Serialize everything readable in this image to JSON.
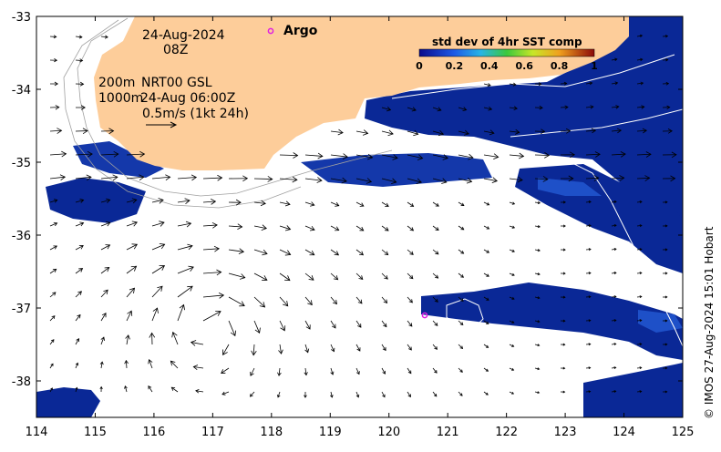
{
  "map": {
    "date": "24-Aug-2024",
    "hour": "08Z",
    "legend_line1_depth": "200m",
    "legend_line1_text": "NRT00 GSL",
    "legend_line2_depth": "1000m",
    "legend_line2_text": "24-Aug 06:00Z",
    "scale_text": "0.5m/s (1kt 24h)",
    "argo_label": "Argo",
    "credit": "© IMOS 27-Aug-2024 15:01 Hobart",
    "colorbar": {
      "title": "std dev of 4hr SST comp",
      "ticks": [
        "0",
        "0.2",
        "0.4",
        "0.6",
        "0.8",
        "1"
      ]
    },
    "x_ticks": [
      "114",
      "115",
      "116",
      "117",
      "118",
      "119",
      "120",
      "121",
      "122",
      "123",
      "124",
      "125"
    ],
    "y_ticks": [
      "-33",
      "-34",
      "-35",
      "-36",
      "-37",
      "-38"
    ],
    "colors": {
      "land": "#FDCD9A",
      "sst_dark": "#0A1E8C",
      "sst_mid": "#1E50C8",
      "argo": "#E020E0",
      "frame": "#000000"
    }
  }
}
